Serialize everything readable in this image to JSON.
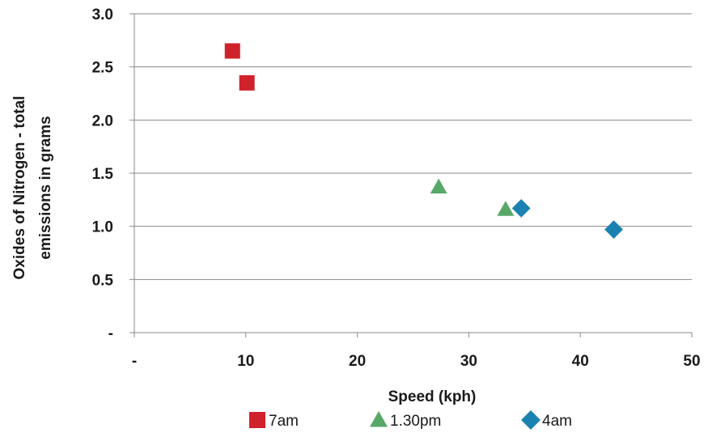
{
  "chart_data": {
    "type": "scatter",
    "title": "",
    "xlabel": "Speed (kph)",
    "ylabel_lines": [
      "Oxides of Nitrogen - total",
      "emissions in grams"
    ],
    "xlim": [
      0,
      50
    ],
    "ylim": [
      0,
      3.0
    ],
    "x_ticks": [
      0,
      10,
      20,
      30,
      40,
      50
    ],
    "x_tick_labels": [
      "-",
      "10",
      "20",
      "30",
      "40",
      "50"
    ],
    "y_ticks": [
      0,
      0.5,
      1.0,
      1.5,
      2.0,
      2.5,
      3.0
    ],
    "y_tick_labels": [
      "-",
      "0.5",
      "1.0",
      "1.5",
      "2.0",
      "2.5",
      "3.0"
    ],
    "grid": "horizontal",
    "legend_position": "bottom",
    "series": [
      {
        "name": "7am",
        "marker": "square",
        "color": "#d0222a",
        "points": [
          {
            "x": 8.8,
            "y": 2.65
          },
          {
            "x": 10.1,
            "y": 2.35
          }
        ]
      },
      {
        "name": "1.30pm",
        "marker": "triangle",
        "color": "#58a867",
        "points": [
          {
            "x": 27.3,
            "y": 1.37
          },
          {
            "x": 33.3,
            "y": 1.16
          }
        ]
      },
      {
        "name": "4am",
        "marker": "diamond",
        "color": "#1a82b0",
        "points": [
          {
            "x": 34.7,
            "y": 1.17
          },
          {
            "x": 43.0,
            "y": 0.97
          }
        ]
      }
    ]
  }
}
